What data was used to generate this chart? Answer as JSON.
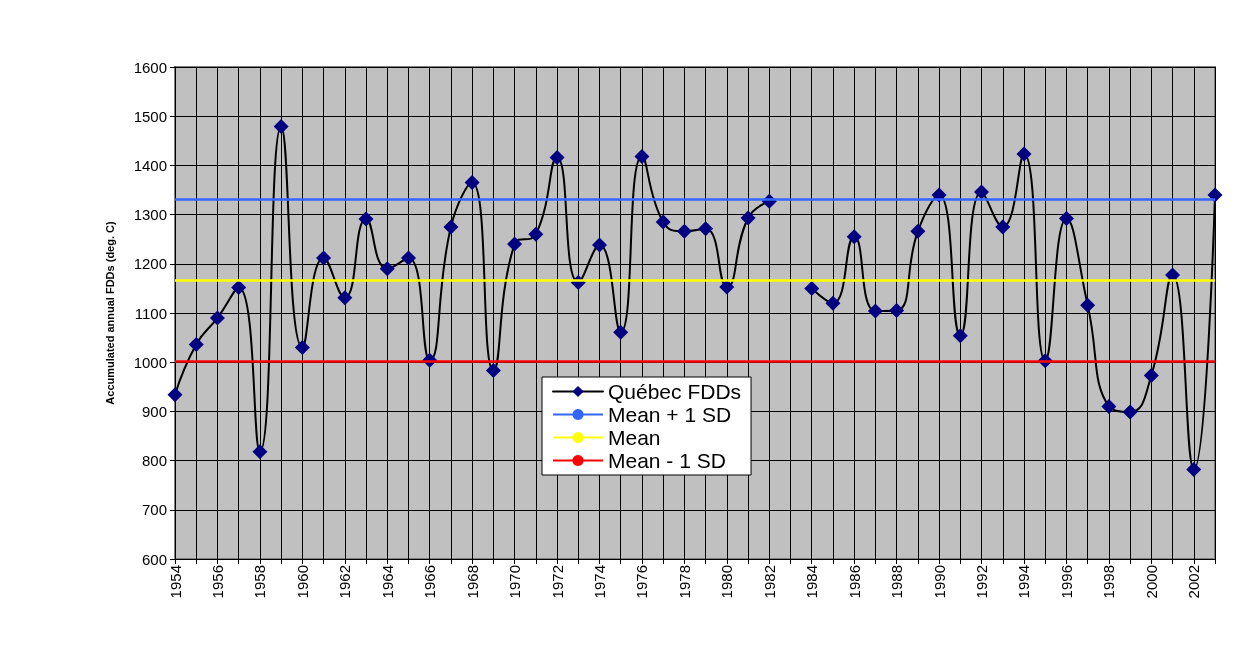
{
  "chart_data": {
    "type": "line",
    "ylabel": "Accumulated annual FDDs (deg. C)",
    "categories": [
      "1954",
      null,
      "1956",
      null,
      "1958",
      null,
      "1960",
      null,
      "1962",
      null,
      "1964",
      null,
      "1966",
      null,
      "1968",
      null,
      "1970",
      null,
      "1972",
      null,
      "1974",
      null,
      "1976",
      null,
      "1978",
      null,
      "1980",
      null,
      "1982",
      null,
      "1984",
      null,
      "1986",
      null,
      "1988",
      null,
      "1990",
      null,
      "1992",
      null,
      "1994",
      null,
      "1996",
      null,
      "1998",
      null,
      "2000",
      null,
      "2002",
      null
    ],
    "series": [
      {
        "name": "Québec FDDs",
        "color": "#000080",
        "values": [
          934,
          1036,
          1090,
          1152,
          818,
          1479,
          1030,
          1212,
          1131,
          1291,
          1190,
          1212,
          1004,
          1275,
          1365,
          983,
          1240,
          1260,
          1416,
          1162,
          1238,
          1061,
          1418,
          1285,
          1266,
          1271,
          1153,
          1293,
          1327,
          null,
          1150,
          1120,
          1255,
          1104,
          1105,
          1266,
          1340,
          1054,
          1346,
          1275,
          1423,
          1003,
          1292,
          1116,
          910,
          899,
          973,
          1177,
          782,
          1340
        ]
      }
    ],
    "ref_lines": [
      {
        "axis": "y",
        "value": 1332,
        "label": "Mean + 1 SD",
        "color": "#3366ff"
      },
      {
        "axis": "y",
        "value": 1166,
        "label": "Mean",
        "color": "#ffff00"
      },
      {
        "axis": "y",
        "value": 1002,
        "label": "Mean - 1 SD",
        "color": "#ff0000"
      }
    ],
    "ylim": [
      600,
      1600
    ],
    "yticks": [
      600,
      700,
      800,
      900,
      1000,
      1100,
      1200,
      1300,
      1400,
      1500,
      1600
    ],
    "grid": true,
    "legend": "bottom",
    "marker": "diamond",
    "line_style": "solid"
  }
}
